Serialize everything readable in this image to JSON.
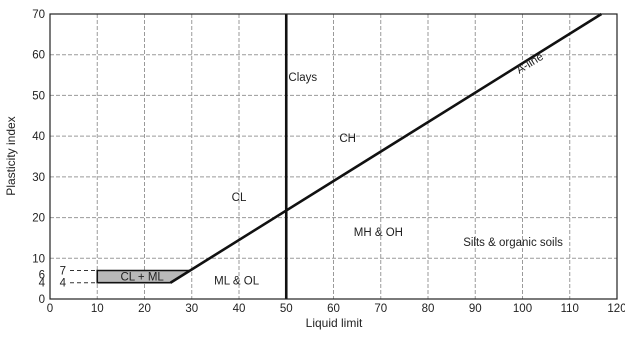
{
  "chart_data": {
    "type": "line",
    "title": "",
    "xlabel": "Liquid limit",
    "ylabel": "Plasticity index",
    "xlim": [
      0,
      120
    ],
    "ylim": [
      0,
      70
    ],
    "grid": true,
    "xticks": [
      0,
      10,
      20,
      30,
      40,
      50,
      60,
      70,
      80,
      90,
      100,
      110,
      120
    ],
    "yticks": [
      0,
      10,
      20,
      30,
      40,
      50,
      60,
      70
    ],
    "extra_yticks": [
      4,
      6
    ],
    "series": [
      {
        "name": "A-line",
        "x": [
          25.5,
          116.7
        ],
        "y": [
          4,
          70
        ]
      },
      {
        "name": "",
        "x": [
          50,
          50
        ],
        "y": [
          0,
          70
        ]
      }
    ],
    "regions": [
      {
        "label": "CL + ML",
        "polygon": [
          [
            10,
            4
          ],
          [
            25.5,
            4
          ],
          [
            29.6,
            7
          ],
          [
            10,
            7
          ]
        ]
      }
    ],
    "reference_lines": [
      {
        "label": "7",
        "y": 7,
        "x_from": 0,
        "x_to": 29.6
      },
      {
        "label": "4",
        "y": 4,
        "x_from": 0,
        "x_to": 10
      }
    ],
    "annotations": [
      {
        "text": "Clays",
        "x": 53.5,
        "y": 54.5
      },
      {
        "text": "CH",
        "x": 63,
        "y": 39.5
      },
      {
        "text": "CL",
        "x": 40,
        "y": 25
      },
      {
        "text": "MH & OH",
        "x": 69.5,
        "y": 16.5
      },
      {
        "text": "Silts & organic soils",
        "x": 98,
        "y": 14
      },
      {
        "text": "ML & OL",
        "x": 39.5,
        "y": 4.5
      },
      {
        "text": "CL + ML",
        "x": 19.5,
        "y": 5.5
      },
      {
        "text": "A-line",
        "x": 101.5,
        "y": 58,
        "rotate": true
      }
    ]
  }
}
